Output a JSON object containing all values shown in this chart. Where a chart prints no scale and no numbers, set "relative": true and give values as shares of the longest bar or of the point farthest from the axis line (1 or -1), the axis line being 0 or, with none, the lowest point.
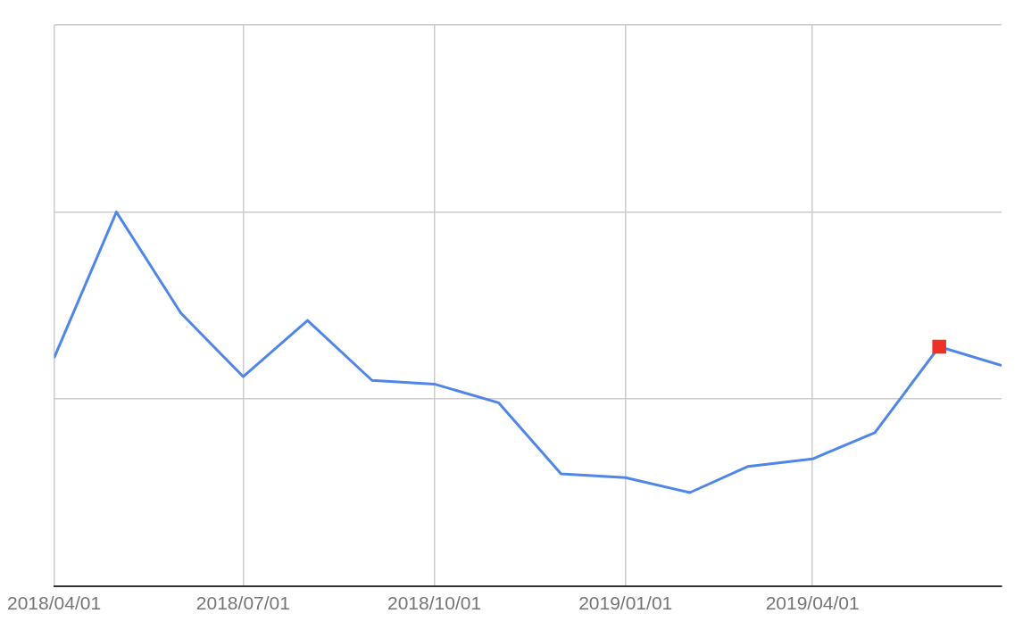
{
  "chart_data": {
    "type": "line",
    "relative": true,
    "grid": true,
    "legend": false,
    "x": [
      "2018-04-01",
      "2018-05-01",
      "2018-06-01",
      "2018-07-01",
      "2018-08-01",
      "2018-09-01",
      "2018-10-01",
      "2018-11-01",
      "2018-12-01",
      "2019-01-01",
      "2019-02-01",
      "2019-03-01",
      "2019-04-01",
      "2019-05-01",
      "2019-06-01",
      "2019-07-01"
    ],
    "xlim": [
      "2018-04-01",
      "2019-07-01"
    ],
    "xticks": [
      {
        "value": "2018-04-01",
        "label": "2018/04/01"
      },
      {
        "value": "2018-07-01",
        "label": "2018/07/01"
      },
      {
        "value": "2018-10-01",
        "label": "2018/10/01"
      },
      {
        "value": "2019-01-01",
        "label": "2019/01/01"
      },
      {
        "value": "2019-04-01",
        "label": "2019/04/01"
      }
    ],
    "marker": "none",
    "line_style": "solid",
    "series": [
      {
        "color": "#4f86e8",
        "values": [
          0.61,
          1,
          0.73,
          0.56,
          0.71,
          0.55,
          0.54,
          0.49,
          0.3,
          0.29,
          0.25,
          0.32,
          0.34,
          0.41,
          0.64,
          0.59
        ]
      },
      {
        "type": "scatter",
        "marker": "square",
        "color": "#ee3124",
        "x": [
          "2019-06-01"
        ],
        "values": [
          0.64
        ]
      }
    ]
  }
}
